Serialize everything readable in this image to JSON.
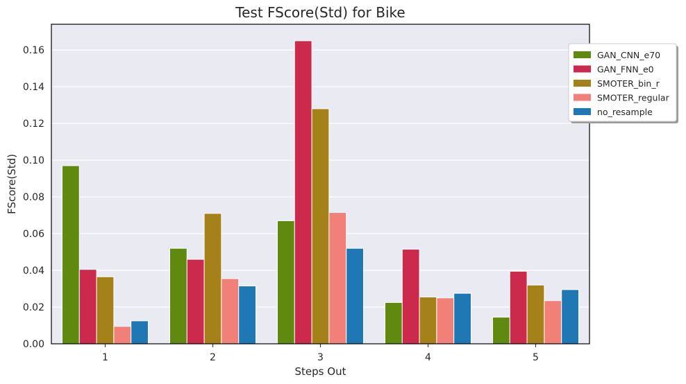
{
  "chart_data": {
    "type": "bar",
    "title": "Test FScore(Std) for Bike",
    "xlabel": "Steps Out",
    "ylabel": "FScore(Std)",
    "categories": [
      "1",
      "2",
      "3",
      "4",
      "5"
    ],
    "ylim": [
      0,
      0.174
    ],
    "yticks": [
      0.0,
      0.02,
      0.04,
      0.06,
      0.08,
      0.1,
      0.12,
      0.14,
      0.16
    ],
    "ytick_labels": [
      "0.00",
      "0.02",
      "0.04",
      "0.06",
      "0.08",
      "0.10",
      "0.12",
      "0.14",
      "0.16"
    ],
    "grid": true,
    "legend_position": "top-right",
    "series": [
      {
        "name": "GAN_CNN_e70",
        "color": "#5f8a0f",
        "values": [
          0.097,
          0.052,
          0.067,
          0.0225,
          0.0145
        ]
      },
      {
        "name": "GAN_FNN_e0",
        "color": "#cb2a4d",
        "values": [
          0.0405,
          0.046,
          0.165,
          0.0515,
          0.0395
        ]
      },
      {
        "name": "SMOTER_bin_r",
        "color": "#a5811a",
        "values": [
          0.0365,
          0.071,
          0.128,
          0.0255,
          0.032
        ]
      },
      {
        "name": "SMOTER_regular",
        "color": "#f08078",
        "values": [
          0.0095,
          0.0355,
          0.0715,
          0.025,
          0.0235
        ]
      },
      {
        "name": "no_resample",
        "color": "#1f77b4",
        "values": [
          0.0125,
          0.0315,
          0.052,
          0.0275,
          0.0295
        ]
      }
    ]
  },
  "style": {
    "plot_background": "#eaeaf2",
    "grid_color": "#ffffff",
    "axis_color": "#000000"
  }
}
